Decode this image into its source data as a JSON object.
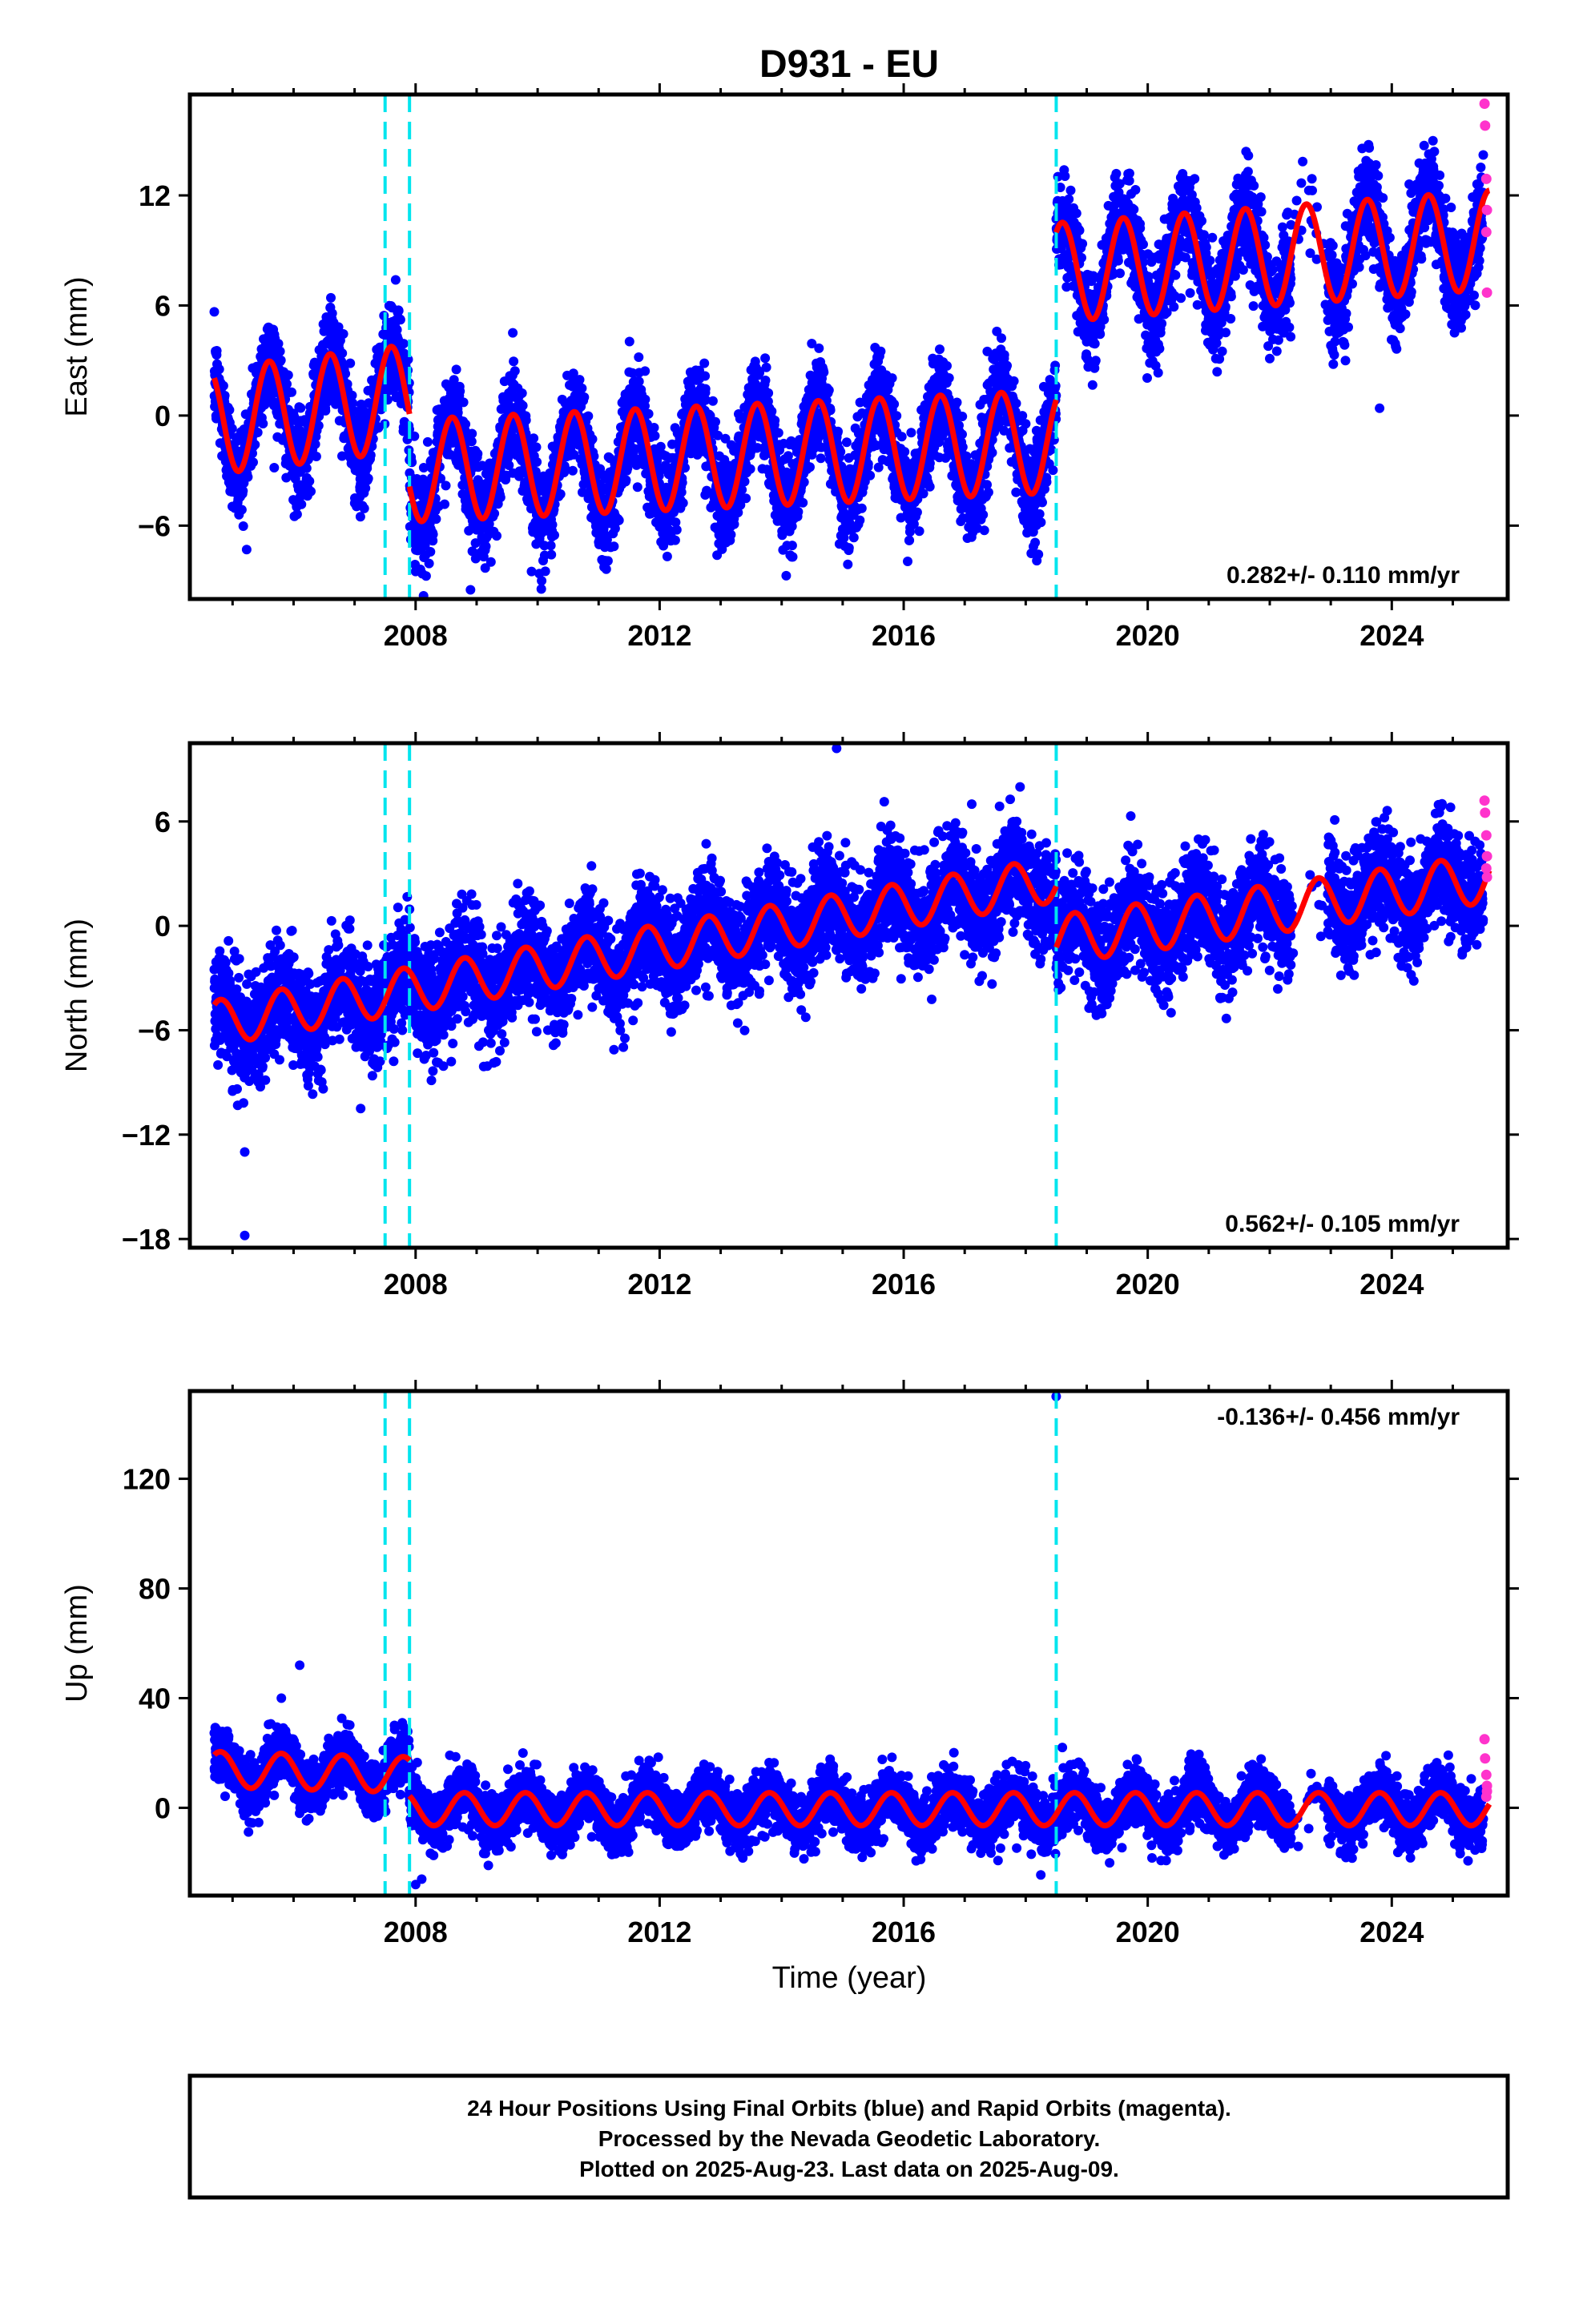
{
  "title": "D931 - EU",
  "footer": {
    "lines": [
      "24 Hour Positions Using Final Orbits (blue) and Rapid Orbits (magenta).",
      "Processed by the Nevada Geodetic Laboratory.",
      "Plotted on 2025-Aug-23. Last data on 2025-Aug-09."
    ]
  },
  "colors": {
    "final_orbits": "#0000ff",
    "rapid_orbits": "#ff33cc",
    "model_fit": "#ff0000",
    "offsets": "#00e5ee"
  },
  "chart_data": [
    {
      "type": "scatter",
      "name": "east",
      "ylabel": "East (mm)",
      "xlabel": "",
      "xlim": [
        2004.3,
        2025.9
      ],
      "ylim": [
        -10,
        17.5
      ],
      "x_ticks": [
        2008,
        2012,
        2016,
        2020,
        2024
      ],
      "y_ticks": [
        -6,
        0,
        6,
        12
      ],
      "rate": "0.282+/- 0.110 mm/yr",
      "rate_position": "bottom-right",
      "offsets": [
        2007.5,
        2007.9,
        2018.5
      ],
      "model": {
        "segments": [
          {
            "start": 2004.7,
            "end": 2007.9,
            "base": -0.3,
            "trend": 0.4,
            "amp": 2.9,
            "phase": 0.35
          },
          {
            "start": 2007.9,
            "end": 2018.5,
            "base": -3.0,
            "trend": 0.15,
            "amp": 2.8,
            "phase": 0.35
          },
          {
            "start": 2018.5,
            "end": 2025.6,
            "base": 7.8,
            "trend": 0.25,
            "amp": 2.7,
            "phase": 0.35
          }
        ]
      },
      "noise": 1.3,
      "outliers_final": [
        [
          2008.0,
          -8.5
        ],
        [
          2008.9,
          -9.5
        ],
        [
          2009.9,
          -8.5
        ],
        [
          2023.8,
          0.4
        ]
      ],
      "rapid_points": [
        [
          2025.52,
          17.0
        ],
        [
          2025.53,
          15.8
        ],
        [
          2025.55,
          12.9
        ],
        [
          2025.56,
          11.2
        ],
        [
          2025.55,
          10.0
        ],
        [
          2025.56,
          6.7
        ]
      ]
    },
    {
      "type": "scatter",
      "name": "north",
      "ylabel": "North (mm)",
      "xlabel": "",
      "xlim": [
        2004.3,
        2025.9
      ],
      "ylim": [
        -18.5,
        10.5
      ],
      "x_ticks": [
        2008,
        2012,
        2016,
        2020,
        2024
      ],
      "y_ticks": [
        -18,
        -12,
        -6,
        0,
        6
      ],
      "rate": "0.562+/- 0.105 mm/yr",
      "rate_position": "bottom-right",
      "offsets": [
        2007.5,
        2007.9,
        2018.5
      ],
      "model": {
        "segments": [
          {
            "start": 2004.7,
            "end": 2018.5,
            "base": -5.6,
            "trend": 0.6,
            "amp": 1.3,
            "phase": 0.55
          },
          {
            "start": 2018.5,
            "end": 2025.6,
            "base": -0.8,
            "trend": 0.5,
            "amp": 1.4,
            "phase": 0.55
          }
        ]
      },
      "noise": 1.5,
      "outliers_final": [
        [
          2005.0,
          -9.5
        ],
        [
          2005.2,
          -13.0
        ],
        [
          2005.2,
          -17.8
        ],
        [
          2007.1,
          -10.5
        ],
        [
          2014.9,
          10.2
        ],
        [
          2016.5,
          4.8
        ]
      ],
      "rapid_points": [
        [
          2025.52,
          7.2
        ],
        [
          2025.53,
          6.5
        ],
        [
          2025.55,
          5.2
        ],
        [
          2025.56,
          4.0
        ],
        [
          2025.55,
          3.3
        ],
        [
          2025.56,
          2.8
        ]
      ]
    },
    {
      "type": "scatter",
      "name": "up",
      "ylabel": "Up (mm)",
      "xlabel": "Time (year)",
      "xlim": [
        2004.3,
        2025.9
      ],
      "ylim": [
        -32,
        152
      ],
      "x_ticks": [
        2008,
        2012,
        2016,
        2020,
        2024
      ],
      "y_ticks": [
        0,
        40,
        80,
        120
      ],
      "rate": "-0.136+/- 0.456 mm/yr",
      "rate_position": "top-right",
      "offsets": [
        2007.5,
        2007.9,
        2018.5
      ],
      "model": {
        "segments": [
          {
            "start": 2004.7,
            "end": 2007.9,
            "base": 14.0,
            "trend": -0.6,
            "amp": 6.5,
            "phase": 0.55
          },
          {
            "start": 2007.9,
            "end": 2025.6,
            "base": -0.5,
            "trend": 0.0,
            "amp": 6.0,
            "phase": 0.55
          }
        ]
      },
      "noise": 5.0,
      "outliers_final": [
        [
          2006.1,
          52.0
        ],
        [
          2005.8,
          40.0
        ],
        [
          2008.0,
          -28.0
        ],
        [
          2008.1,
          -26.0
        ],
        [
          2018.5,
          150.0
        ],
        [
          2018.6,
          22.0
        ]
      ],
      "rapid_points": [
        [
          2025.52,
          25.0
        ],
        [
          2025.53,
          18.0
        ],
        [
          2025.55,
          12.0
        ],
        [
          2025.56,
          8.0
        ],
        [
          2025.55,
          4.0
        ],
        [
          2025.56,
          6.0
        ]
      ]
    }
  ]
}
